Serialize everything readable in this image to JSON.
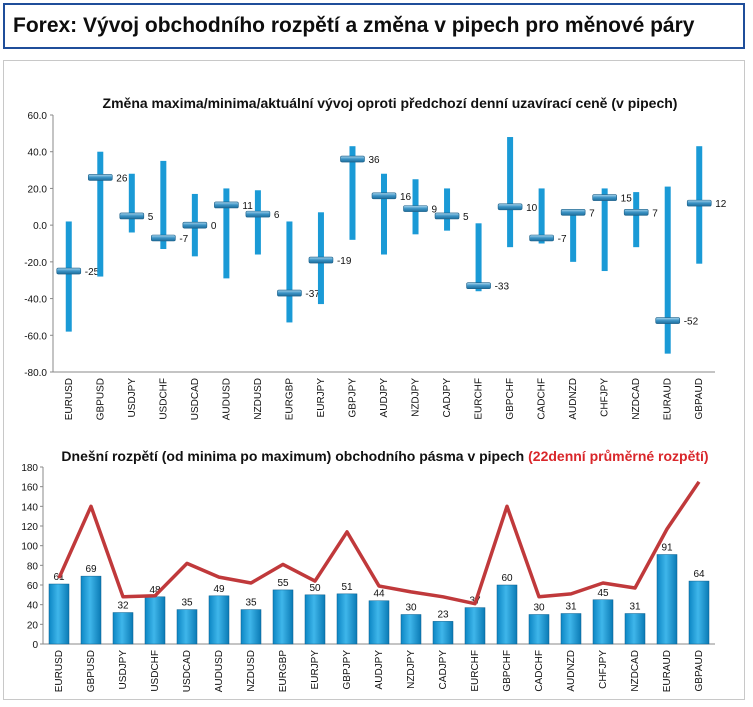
{
  "header": {
    "title": "Forex: Vývoj obchodního rozpětí a změna v pipech pro měnové páry"
  },
  "colors": {
    "bar": "#1a9ad6",
    "marker": "#2a86b8",
    "line": "#c0393b",
    "accent_red": "#d9262a"
  },
  "chart_data": [
    {
      "type": "range",
      "title": "Změna maxima/minima/aktuální vývoj oproti předchozí denní uzavírací ceně (v pipech)",
      "ylim": [
        -80,
        60
      ],
      "yticks": [
        "60.0",
        "40.0",
        "20.0",
        "0.0",
        "-20.0",
        "-40.0",
        "-60.0",
        "-80.0"
      ],
      "categories": [
        "EURUSD",
        "GBPUSD",
        "USDJPY",
        "USDCHF",
        "USDCAD",
        "AUDUSD",
        "NZDUSD",
        "EURGBP",
        "EURJPY",
        "GBPJPY",
        "AUDJPY",
        "NZDJPY",
        "CADJPY",
        "EURCHF",
        "GBPCHF",
        "CADCHF",
        "AUDNZD",
        "CHFJPY",
        "NZDCAD",
        "EURAUD",
        "GBPAUD"
      ],
      "high": [
        2,
        40,
        28,
        35,
        17,
        20,
        19,
        2,
        7,
        43,
        28,
        25,
        20,
        1,
        48,
        20,
        8,
        20,
        18,
        21,
        43
      ],
      "low": [
        -58,
        -28,
        -4,
        -13,
        -17,
        -29,
        -16,
        -53,
        -43,
        -8,
        -16,
        -5,
        -3,
        -36,
        -12,
        -10,
        -20,
        -25,
        -12,
        -70,
        -21
      ],
      "current": [
        -25,
        26,
        5,
        -7,
        0,
        11,
        6,
        -37,
        -19,
        36,
        16,
        9,
        5,
        -33,
        10,
        -7,
        7,
        15,
        7,
        -52,
        12
      ],
      "current_labels": [
        "-25",
        "26",
        "5",
        "-7",
        "0",
        "11",
        "6",
        "-37",
        "-19",
        "36",
        "16",
        "9",
        "5",
        "-33",
        "10",
        "-7",
        "7",
        "15",
        "7",
        "-52",
        "12"
      ]
    },
    {
      "type": "bar",
      "title": "Dnešní rozpětí (od minima po maximum) obchodního pásma v pipech",
      "title_highlight": "(22denní průměrné rozpětí)",
      "ylim": [
        0,
        180
      ],
      "yticks": [
        "180",
        "160",
        "140",
        "120",
        "100",
        "80",
        "60",
        "40",
        "20",
        "0"
      ],
      "categories": [
        "EURUSD",
        "GBPUSD",
        "USDJPY",
        "USDCHF",
        "USDCAD",
        "AUDUSD",
        "NZDUSD",
        "EURGBP",
        "EURJPY",
        "GBPJPY",
        "AUDJPY",
        "NZDJPY",
        "CADJPY",
        "EURCHF",
        "GBPCHF",
        "CADCHF",
        "AUDNZD",
        "CHFJPY",
        "NZDCAD",
        "EURAUD",
        "GBPAUD"
      ],
      "values": [
        61,
        69,
        32,
        48,
        35,
        49,
        35,
        55,
        50,
        51,
        44,
        30,
        23,
        37,
        60,
        30,
        31,
        45,
        31,
        91,
        64
      ],
      "value_labels": [
        "61",
        "69",
        "32",
        "48",
        "35",
        "49",
        "35",
        "55",
        "50",
        "51",
        "44",
        "30",
        "23",
        "37",
        "60",
        "30",
        "31",
        "45",
        "31",
        "91",
        "64"
      ],
      "average_22d": [
        67,
        140,
        48,
        49,
        82,
        68,
        62,
        81,
        64,
        114,
        59,
        53,
        48,
        41,
        140,
        48,
        51,
        62,
        57,
        117,
        165
      ]
    }
  ]
}
